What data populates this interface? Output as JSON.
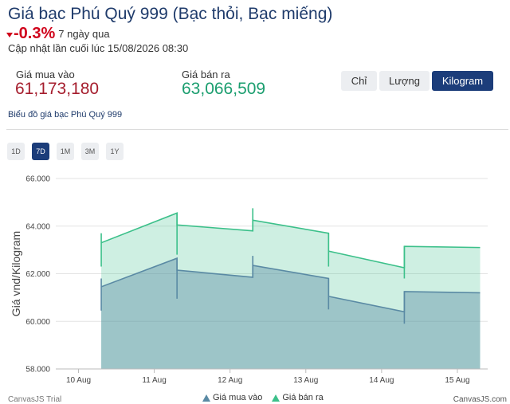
{
  "header": {
    "title": "Giá bạc Phú Quý 999 (Bạc thỏi, Bạc miếng)",
    "change_pct": "-0.3%",
    "period": "7 ngày qua",
    "updated": "Cập nhật lần cuối lúc 15/08/2026 08:30"
  },
  "prices": {
    "buy_label": "Giá mua vào",
    "buy_value": "61,173,180",
    "sell_label": "Giá bán ra",
    "sell_value": "63,066,509"
  },
  "units": {
    "options": [
      "Chỉ",
      "Lượng",
      "Kilogram"
    ],
    "selected": "Kilogram"
  },
  "chart_heading": "Biểu đồ giá bạc Phú Quý 999",
  "ranges": {
    "options": [
      "1D",
      "7D",
      "1M",
      "3M",
      "1Y"
    ],
    "selected": "7D"
  },
  "colors": {
    "buy": "#5a8aa4",
    "sell": "#3cc08a",
    "accent": "#1c3d7a",
    "down": "#d0021b"
  },
  "chart_data": {
    "type": "area",
    "ylabel": "Giá vnd/Kilogram",
    "ylim": [
      58000,
      66000
    ],
    "yticks": [
      "58.000",
      "60.000",
      "62.000",
      "64.000",
      "66.000"
    ],
    "xlim": [
      9.7,
      15.4
    ],
    "xticks": [
      {
        "x": 10,
        "label": "10 Aug"
      },
      {
        "x": 11,
        "label": "11 Aug"
      },
      {
        "x": 12,
        "label": "12 Aug"
      },
      {
        "x": 13,
        "label": "13 Aug"
      },
      {
        "x": 14,
        "label": "14 Aug"
      },
      {
        "x": 15,
        "label": "15 Aug"
      }
    ],
    "grid": true,
    "legend_position": "bottom",
    "series": [
      {
        "name": "Giá mua vào",
        "points": [
          {
            "x": 10.3,
            "y": 61450
          },
          {
            "x": 11.3,
            "y": 62650
          },
          {
            "x": 11.3,
            "y": 62150
          },
          {
            "x": 12.3,
            "y": 61850
          },
          {
            "x": 12.3,
            "y": 62350
          },
          {
            "x": 13.3,
            "y": 61800
          },
          {
            "x": 13.3,
            "y": 61050
          },
          {
            "x": 14.3,
            "y": 60400
          },
          {
            "x": 14.3,
            "y": 61250
          },
          {
            "x": 15.3,
            "y": 61200
          }
        ],
        "jumps": [
          {
            "x": 10.3,
            "low": 60450,
            "high": 61800
          },
          {
            "x": 11.3,
            "low": 60950,
            "high": 62650
          },
          {
            "x": 12.3,
            "low": 61850,
            "high": 62750
          },
          {
            "x": 13.3,
            "low": 60500,
            "high": 61800
          },
          {
            "x": 14.3,
            "low": 59900,
            "high": 61250
          }
        ]
      },
      {
        "name": "Giá bán ra",
        "points": [
          {
            "x": 10.3,
            "y": 63300
          },
          {
            "x": 11.3,
            "y": 64550
          },
          {
            "x": 11.3,
            "y": 64050
          },
          {
            "x": 12.3,
            "y": 63800
          },
          {
            "x": 12.3,
            "y": 64250
          },
          {
            "x": 13.3,
            "y": 63700
          },
          {
            "x": 13.3,
            "y": 62950
          },
          {
            "x": 14.3,
            "y": 62250
          },
          {
            "x": 14.3,
            "y": 63150
          },
          {
            "x": 15.3,
            "y": 63100
          }
        ],
        "jumps": [
          {
            "x": 10.3,
            "low": 62300,
            "high": 63700
          },
          {
            "x": 11.3,
            "low": 62800,
            "high": 64550
          },
          {
            "x": 12.3,
            "low": 63800,
            "high": 64750
          },
          {
            "x": 13.3,
            "low": 62300,
            "high": 63700
          },
          {
            "x": 14.3,
            "low": 61800,
            "high": 63150
          }
        ]
      }
    ]
  },
  "footer": {
    "trial": "CanvasJS Trial",
    "brand": "CanvasJS.com"
  }
}
